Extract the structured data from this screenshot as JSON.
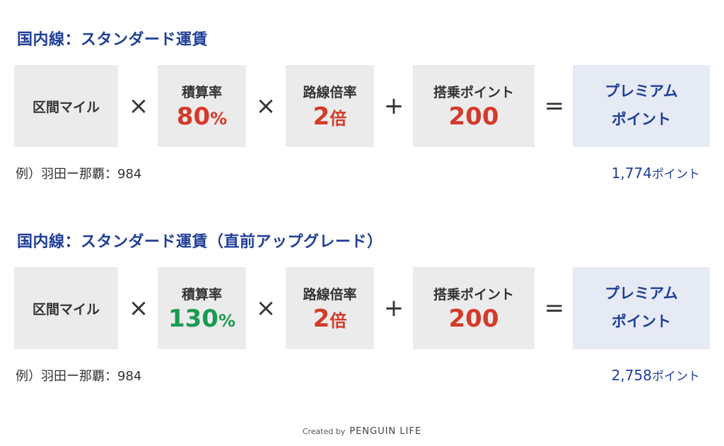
{
  "sections": [
    {
      "title": "国内線：スタンダード運賃",
      "base_label": "区間マイル",
      "op1": "×",
      "rate_label": "積算率",
      "rate_value": "80",
      "rate_unit": "%",
      "rate_color": "#d43a2a",
      "op2": "×",
      "multiplier_label": "路線倍率",
      "multiplier_value": "2",
      "multiplier_unit": "倍",
      "op3": "+",
      "bonus_label": "搭乗ポイント",
      "bonus_value": "200",
      "op4": "=",
      "result_label_line1": "プレミアム",
      "result_label_line2": "ポイント",
      "example": "例）羽田ー那覇：984",
      "result_points": "1,774",
      "result_unit": "ポイント"
    },
    {
      "title": "国内線：スタンダード運賃（直前アップグレード）",
      "base_label": "区間マイル",
      "op1": "×",
      "rate_label": "積算率",
      "rate_value": "130",
      "rate_unit": "%",
      "rate_color": "#1a9a50",
      "op2": "×",
      "multiplier_label": "路線倍率",
      "multiplier_value": "2",
      "multiplier_unit": "倍",
      "op3": "+",
      "bonus_label": "搭乗ポイント",
      "bonus_value": "200",
      "op4": "=",
      "result_label_line1": "プレミアム",
      "result_label_line2": "ポイント",
      "example": "例）羽田ー那覇：984",
      "result_points": "2,758",
      "result_unit": "ポイント"
    }
  ],
  "credit": {
    "prefix": "Created by",
    "brand": "PENGUIN LIFE"
  },
  "colors": {
    "title": "#1f3e99",
    "box_bg": "#ebebeb",
    "result_bg": "#e6eaf5",
    "red": "#d43a2a",
    "green": "#1a9a50"
  }
}
